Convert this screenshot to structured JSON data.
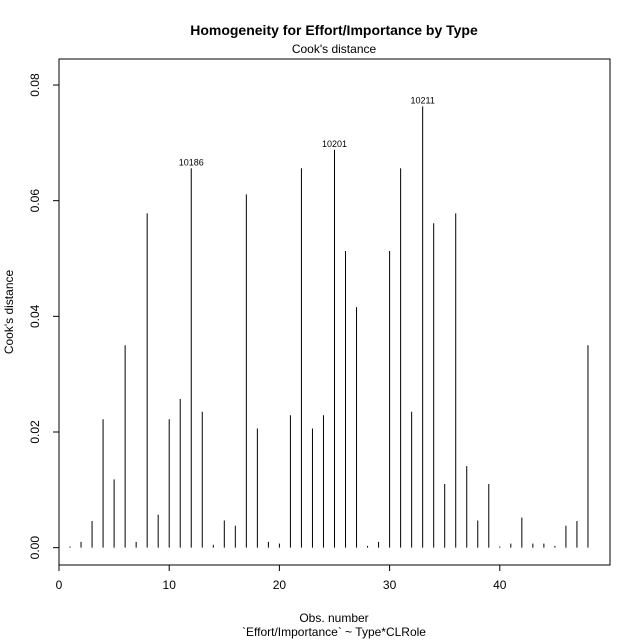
{
  "chart_data": {
    "type": "bar",
    "title": "Homogeneity for Effort/Importance by Type",
    "subtitle": "Cook's distance",
    "xlabel": "Obs. number",
    "xlabel2": "`Effort/Importance` ~ Type*CLRole",
    "ylabel": "Cook's distance",
    "xlim": [
      0,
      50
    ],
    "ylim": [
      -0.003,
      0.0845
    ],
    "x_ticks": [
      0,
      10,
      20,
      30,
      40
    ],
    "y_ticks": [
      0.0,
      0.02,
      0.04,
      0.06,
      0.08
    ],
    "y_tick_labels": [
      "0.00",
      "0.02",
      "0.04",
      "0.06",
      "0.08"
    ],
    "x": [
      1,
      2,
      3,
      4,
      5,
      6,
      7,
      8,
      9,
      10,
      11,
      12,
      13,
      14,
      15,
      16,
      17,
      18,
      19,
      20,
      21,
      22,
      23,
      24,
      25,
      26,
      27,
      28,
      29,
      30,
      31,
      32,
      33,
      34,
      35,
      36,
      37,
      38,
      39,
      40,
      41,
      42,
      43,
      44,
      45,
      46,
      47,
      48
    ],
    "values": [
      0.0002,
      0.001,
      0.0046,
      0.0222,
      0.0118,
      0.035,
      0.001,
      0.0578,
      0.0057,
      0.0222,
      0.0257,
      0.0656,
      0.0235,
      0.0005,
      0.0047,
      0.0038,
      0.0611,
      0.0206,
      0.001,
      0.0007,
      0.0229,
      0.0656,
      0.0206,
      0.0229,
      0.0688,
      0.0513,
      0.0416,
      0.0003,
      0.001,
      0.0513,
      0.0656,
      0.0235,
      0.0763,
      0.0561,
      0.011,
      0.0578,
      0.0141,
      0.0047,
      0.011,
      0.0002,
      0.0007,
      0.0052,
      0.0007,
      0.0007,
      0.0003,
      0.0038,
      0.0046,
      0.035
    ],
    "annotations": [
      {
        "x": 12,
        "label": "10186"
      },
      {
        "x": 25,
        "label": "10201"
      },
      {
        "x": 33,
        "label": "10211"
      }
    ]
  }
}
